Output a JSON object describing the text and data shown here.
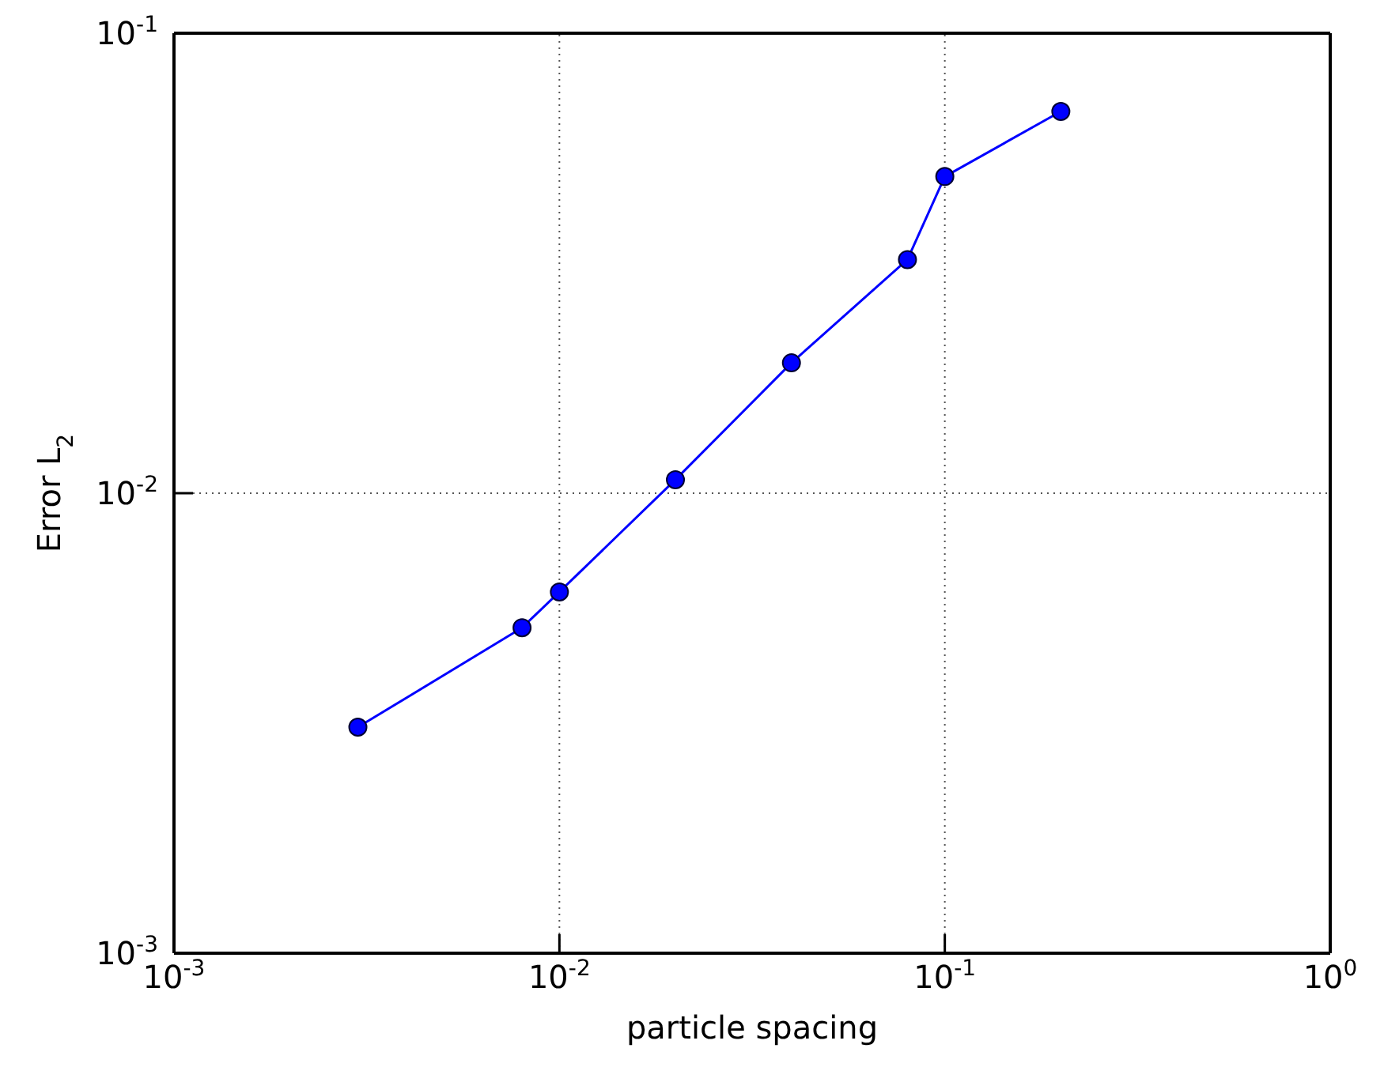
{
  "chart_data": {
    "type": "line",
    "xlabel": "particle spacing",
    "ylabel": "Error L$_{2}$",
    "log": "xy",
    "grid": true,
    "marker": "circle",
    "line_style": "solid",
    "x": [
      0.003,
      0.008,
      0.01,
      0.02,
      0.04,
      0.08,
      0.1,
      0.2
    ],
    "series": [
      {
        "color": "#0000ff",
        "values": [
          0.0031,
          0.0051,
          0.0061,
          0.0107,
          0.0192,
          0.0322,
          0.0488,
          0.0676
        ]
      }
    ],
    "xlim": [
      0.001,
      1
    ],
    "ylim": [
      0.001,
      0.1
    ],
    "xticks": [
      {
        "value": 0.001,
        "label": "10$^{-3}$"
      },
      {
        "value": 0.01,
        "label": "10$^{-2}$"
      },
      {
        "value": 0.1,
        "label": "10$^{-1}$"
      },
      {
        "value": 1,
        "label": "10$^{0}$"
      }
    ],
    "yticks": [
      {
        "value": 0.001,
        "label": "10$^{-3}$"
      },
      {
        "value": 0.01,
        "label": "10$^{-2}$"
      },
      {
        "value": 0.1,
        "label": "10$^{-1}$"
      }
    ]
  }
}
